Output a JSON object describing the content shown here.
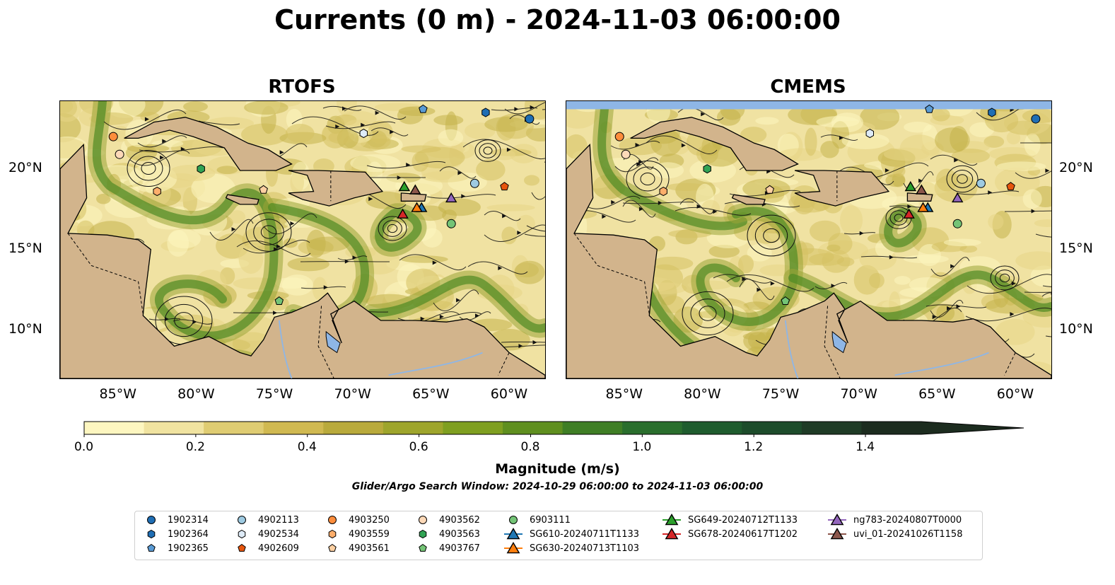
{
  "title": "Currents (0 m) - 2024-11-03 06:00:00",
  "panels": [
    {
      "title": "RTOFS"
    },
    {
      "title": "CMEMS"
    }
  ],
  "axes": {
    "lon_ticks": [
      "85°W",
      "80°W",
      "75°W",
      "70°W",
      "65°W",
      "60°W"
    ],
    "lat_ticks": [
      "20°N",
      "15°N",
      "10°N"
    ]
  },
  "colorbar": {
    "label": "Magnitude (m/s)",
    "ticks": [
      "0.0",
      "0.2",
      "0.4",
      "0.6",
      "0.8",
      "1.0",
      "1.2",
      "1.4"
    ],
    "range": [
      0,
      1.5
    ],
    "colors": [
      "#fdf6c0",
      "#f0e3a0",
      "#dfcc72",
      "#d0b951",
      "#b9aa3c",
      "#9ea52c",
      "#7f9f20",
      "#5f8f1f",
      "#3f7e25",
      "#2a6e2d",
      "#1f5c2e",
      "#1d4c2b",
      "#1f3b26",
      "#1c2c1f"
    ]
  },
  "window_note": "Glider/Argo Search Window: 2024-10-29 06:00:00 to 2024-11-03 06:00:00",
  "legend": [
    {
      "label": "1902314",
      "marker": "circle",
      "color": "#1f6eb4"
    },
    {
      "label": "1902364",
      "marker": "hexagon",
      "color": "#1f6eb4"
    },
    {
      "label": "1902365",
      "marker": "pentagon",
      "color": "#5a9bd5"
    },
    {
      "label": "4902113",
      "marker": "circle",
      "color": "#9ecae1"
    },
    {
      "label": "4902534",
      "marker": "hexagon",
      "color": "#deebf7"
    },
    {
      "label": "4902609",
      "marker": "pentagon",
      "color": "#e6550d"
    },
    {
      "label": "4903250",
      "marker": "circle",
      "color": "#fd8d3c"
    },
    {
      "label": "4903559",
      "marker": "hexagon",
      "color": "#fdae6b"
    },
    {
      "label": "4903561",
      "marker": "pentagon",
      "color": "#fdd0a2"
    },
    {
      "label": "4903562",
      "marker": "circle",
      "color": "#fdd9b8"
    },
    {
      "label": "4903563",
      "marker": "hexagon",
      "color": "#31a354"
    },
    {
      "label": "4903767",
      "marker": "pentagon",
      "color": "#74c476"
    },
    {
      "label": "6903111",
      "marker": "circle",
      "color": "#74c476"
    },
    {
      "label": "SG610-20240711T1133",
      "marker": "triangle",
      "color": "#1f77b4"
    },
    {
      "label": "SG630-20240713T1103",
      "marker": "triangle",
      "color": "#ff7f0e"
    },
    {
      "label": "SG649-20240712T1133",
      "marker": "triangle",
      "color": "#2ca02c"
    },
    {
      "label": "SG678-20240617T1202",
      "marker": "triangle",
      "color": "#d62728"
    },
    {
      "label": "ng783-20240807T0000",
      "marker": "triangle",
      "color": "#9467bd"
    },
    {
      "label": "uvi_01-20241026T1158",
      "marker": "triangle",
      "color": "#8c564b"
    }
  ],
  "extent": {
    "lon": [
      -89,
      -58
    ],
    "lat": [
      7,
      24.2
    ]
  },
  "observations": [
    {
      "id": "1902314",
      "lon": -59.0,
      "lat": 23.1
    },
    {
      "id": "1902364",
      "lon": -61.8,
      "lat": 23.5
    },
    {
      "id": "1902365",
      "lon": -65.8,
      "lat": 23.7
    },
    {
      "id": "4902113",
      "lon": -62.5,
      "lat": 19.1
    },
    {
      "id": "4902534",
      "lon": -69.6,
      "lat": 22.2
    },
    {
      "id": "4902609",
      "lon": -60.6,
      "lat": 18.9
    },
    {
      "id": "4903250",
      "lon": -85.6,
      "lat": 22.0
    },
    {
      "id": "4903559",
      "lon": -82.8,
      "lat": 18.6
    },
    {
      "id": "4903561",
      "lon": -76.0,
      "lat": 18.7
    },
    {
      "id": "4903562",
      "lon": -85.2,
      "lat": 20.9
    },
    {
      "id": "4903563",
      "lon": -80.0,
      "lat": 20.0
    },
    {
      "id": "4903767",
      "lon": -75.0,
      "lat": 11.8
    },
    {
      "id": "6903111",
      "lon": -64.0,
      "lat": 16.6
    },
    {
      "id": "SG610-20240711T1133",
      "lon": -65.9,
      "lat": 17.6
    },
    {
      "id": "SG630-20240713T1103",
      "lon": -66.2,
      "lat": 17.6
    },
    {
      "id": "SG649-20240712T1133",
      "lon": -67.0,
      "lat": 18.9
    },
    {
      "id": "SG678-20240617T1202",
      "lon": -67.1,
      "lat": 17.2
    },
    {
      "id": "ng783-20240807T0000",
      "lon": -64.0,
      "lat": 18.2
    },
    {
      "id": "uvi_01-20241026T1158",
      "lon": -66.3,
      "lat": 18.7
    }
  ]
}
